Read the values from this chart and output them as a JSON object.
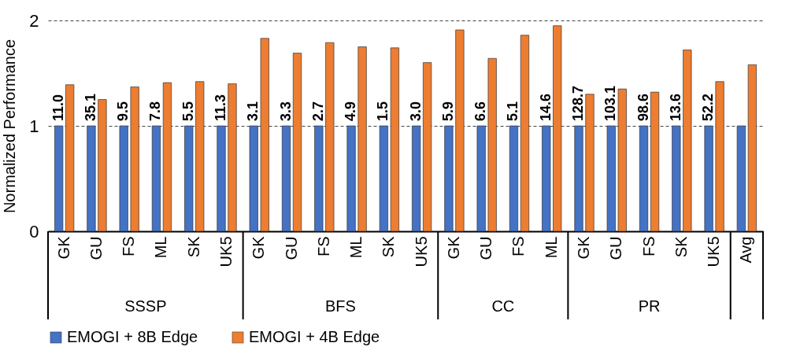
{
  "chart_data": {
    "type": "bar",
    "ylabel": "Normalized Performance",
    "categories": [
      "GK",
      "GU",
      "FS",
      "ML",
      "SK",
      "UK5",
      "GK",
      "GU",
      "FS",
      "ML",
      "SK",
      "UK5",
      "GK",
      "GU",
      "FS",
      "ML",
      "GK",
      "GU",
      "FS",
      "SK",
      "UK5",
      "Avg"
    ],
    "series": [
      {
        "name": "EMOGI + 8B Edge",
        "color": "#4472c4",
        "values": [
          1,
          1,
          1,
          1,
          1,
          1,
          1,
          1,
          1,
          1,
          1,
          1,
          1,
          1,
          1,
          1,
          1,
          1,
          1,
          1,
          1,
          1
        ]
      },
      {
        "name": "EMOGI + 4B Edge",
        "color": "#ed7d31",
        "values": [
          1.39,
          1.25,
          1.37,
          1.41,
          1.42,
          1.4,
          1.83,
          1.69,
          1.79,
          1.75,
          1.74,
          1.6,
          1.91,
          1.64,
          1.86,
          1.95,
          1.3,
          1.35,
          1.32,
          1.72,
          1.42,
          1.58
        ]
      }
    ],
    "ylim": [
      0,
      2
    ],
    "yticks": [
      0,
      1,
      2
    ],
    "grid": "y",
    "legend": "bottom",
    "annotations": [
      "SSSP",
      "BFS",
      "CC",
      "PR",
      "11.0",
      "35.1",
      "9.5",
      "7.8",
      "5.5",
      "11.3",
      "3.1",
      "3.3",
      "2.7",
      "4.9",
      "1.5",
      "3.0",
      "5.9",
      "6.6",
      "5.1",
      "14.6",
      "128.7",
      "103.1",
      "98.6",
      "13.6",
      "52.2"
    ]
  }
}
